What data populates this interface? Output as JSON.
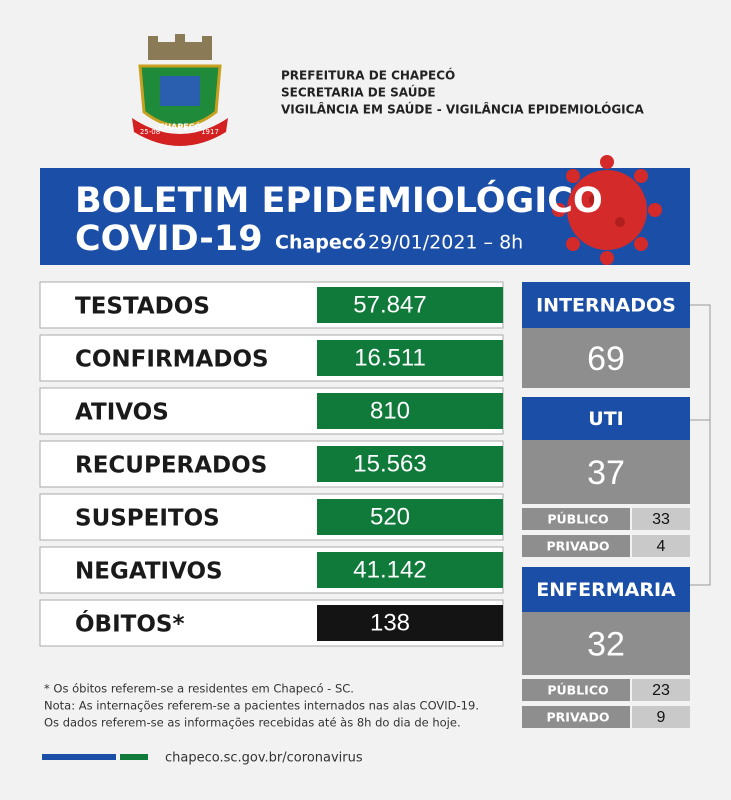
{
  "header": {
    "logo": {
      "name": "CHAPECÓ",
      "dates": [
        "25-08",
        "1917"
      ]
    },
    "lines": [
      "PREFEITURA DE CHAPECÓ",
      "SECRETARIA DE SAÚDE",
      "VIGILÂNCIA EM SAÚDE - VIGILÂNCIA EPIDEMIOLÓGICA"
    ]
  },
  "banner": {
    "title": "BOLETIM EPIDEMIOLÓGICO",
    "subtitle": "COVID-19",
    "city": "Chapecó",
    "date": "29/01/2021 – 8h"
  },
  "stats": [
    {
      "label": "TESTADOS",
      "value": "57.847"
    },
    {
      "label": "CONFIRMADOS",
      "value": "16.511"
    },
    {
      "label": "ATIVOS",
      "value": "810"
    },
    {
      "label": "RECUPERADOS",
      "value": "15.563"
    },
    {
      "label": "SUSPEITOS",
      "value": "520"
    },
    {
      "label": "NEGATIVOS",
      "value": "41.142"
    },
    {
      "label": "ÓBITOS*",
      "value": "138"
    }
  ],
  "internados": {
    "label": "INTERNADOS",
    "value": "69"
  },
  "uti": {
    "label": "UTI",
    "value": "37",
    "rows": [
      {
        "label": "PÚBLICO",
        "value": "33"
      },
      {
        "label": "PRIVADO",
        "value": "4"
      }
    ]
  },
  "enfermaria": {
    "label": "ENFERMARIA",
    "value": "32",
    "rows": [
      {
        "label": "PÚBLICO",
        "value": "23"
      },
      {
        "label": "PRIVADO",
        "value": "9"
      }
    ]
  },
  "notes": [
    "* Os óbitos referem-se a residentes em Chapecó - SC.",
    "Nota: As internações referem-se a pacientes internados nas alas COVID-19.",
    "Os dados referem-se as informações recebidas até às 8h do dia de hoje."
  ],
  "footer": {
    "url": "chapeco.sc.gov.br/coronavirus"
  }
}
